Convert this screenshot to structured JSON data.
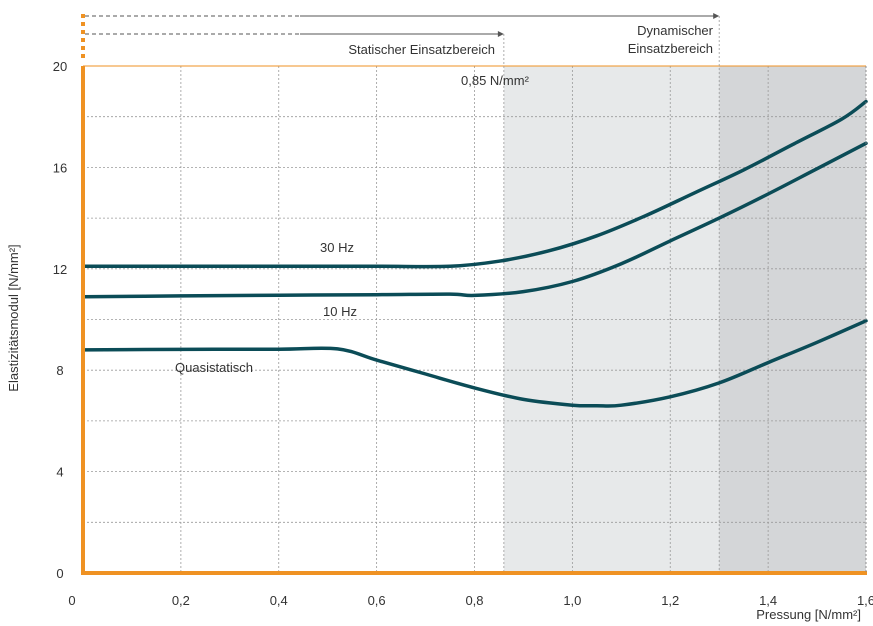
{
  "chart_data": {
    "type": "line",
    "xlabel": "Pressung [N/mm²]",
    "ylabel": "Elastizitätsmodul [N/mm²]",
    "xlim": [
      0,
      1.6
    ],
    "ylim": [
      0,
      20
    ],
    "xticks": [
      0,
      0.2,
      0.4,
      0.6,
      0.8,
      1.0,
      1.2,
      1.4,
      1.6
    ],
    "xtick_labels": [
      "0",
      "0,2",
      "0,4",
      "0,6",
      "0,8",
      "1,0",
      "1,2",
      "1,4",
      "1,6"
    ],
    "yticks": [
      0,
      4,
      8,
      12,
      16,
      20
    ],
    "ytick_labels": [
      "0",
      "4",
      "8",
      "12",
      "16",
      "20"
    ],
    "grid": true,
    "series": [
      {
        "name": "30 Hz",
        "x": [
          0,
          0.2,
          0.4,
          0.6,
          0.75,
          0.85,
          0.95,
          1.05,
          1.15,
          1.25,
          1.35,
          1.45,
          1.55,
          1.6
        ],
        "y": [
          12.1,
          12.1,
          12.1,
          12.1,
          12.1,
          12.3,
          12.7,
          13.3,
          14.1,
          15.0,
          15.9,
          16.9,
          17.9,
          18.6
        ]
      },
      {
        "name": "10 Hz",
        "x": [
          0,
          0.2,
          0.4,
          0.6,
          0.75,
          0.8,
          0.9,
          1.0,
          1.1,
          1.2,
          1.3,
          1.4,
          1.5,
          1.6
        ],
        "y": [
          10.9,
          10.93,
          10.96,
          10.98,
          11.0,
          10.95,
          11.1,
          11.5,
          12.2,
          13.1,
          14.0,
          14.95,
          15.95,
          16.95
        ]
      },
      {
        "name": "Quasistatisch",
        "x": [
          0,
          0.2,
          0.4,
          0.52,
          0.6,
          0.7,
          0.8,
          0.9,
          1.0,
          1.05,
          1.1,
          1.2,
          1.3,
          1.4,
          1.5,
          1.6
        ],
        "y": [
          8.8,
          8.82,
          8.83,
          8.84,
          8.4,
          7.85,
          7.3,
          6.85,
          6.62,
          6.6,
          6.62,
          6.95,
          7.5,
          8.3,
          9.1,
          9.95
        ]
      }
    ],
    "annotations": [
      {
        "text": "Statischer Einsatzbereich"
      },
      {
        "text": "Dynamischer"
      },
      {
        "text": "Einsatzbereich"
      },
      {
        "text": "0,85 N/mm²"
      }
    ],
    "regions": [
      {
        "x_from": 0.86,
        "x_to": 1.3,
        "color": "#e7e9ea"
      },
      {
        "x_from": 1.3,
        "x_to": 1.6,
        "color": "#d4d6d8"
      }
    ],
    "colors": {
      "axis": "#ef9223",
      "line": "#0b4c57",
      "grid": "#9a9a9a",
      "text": "#333333"
    }
  }
}
